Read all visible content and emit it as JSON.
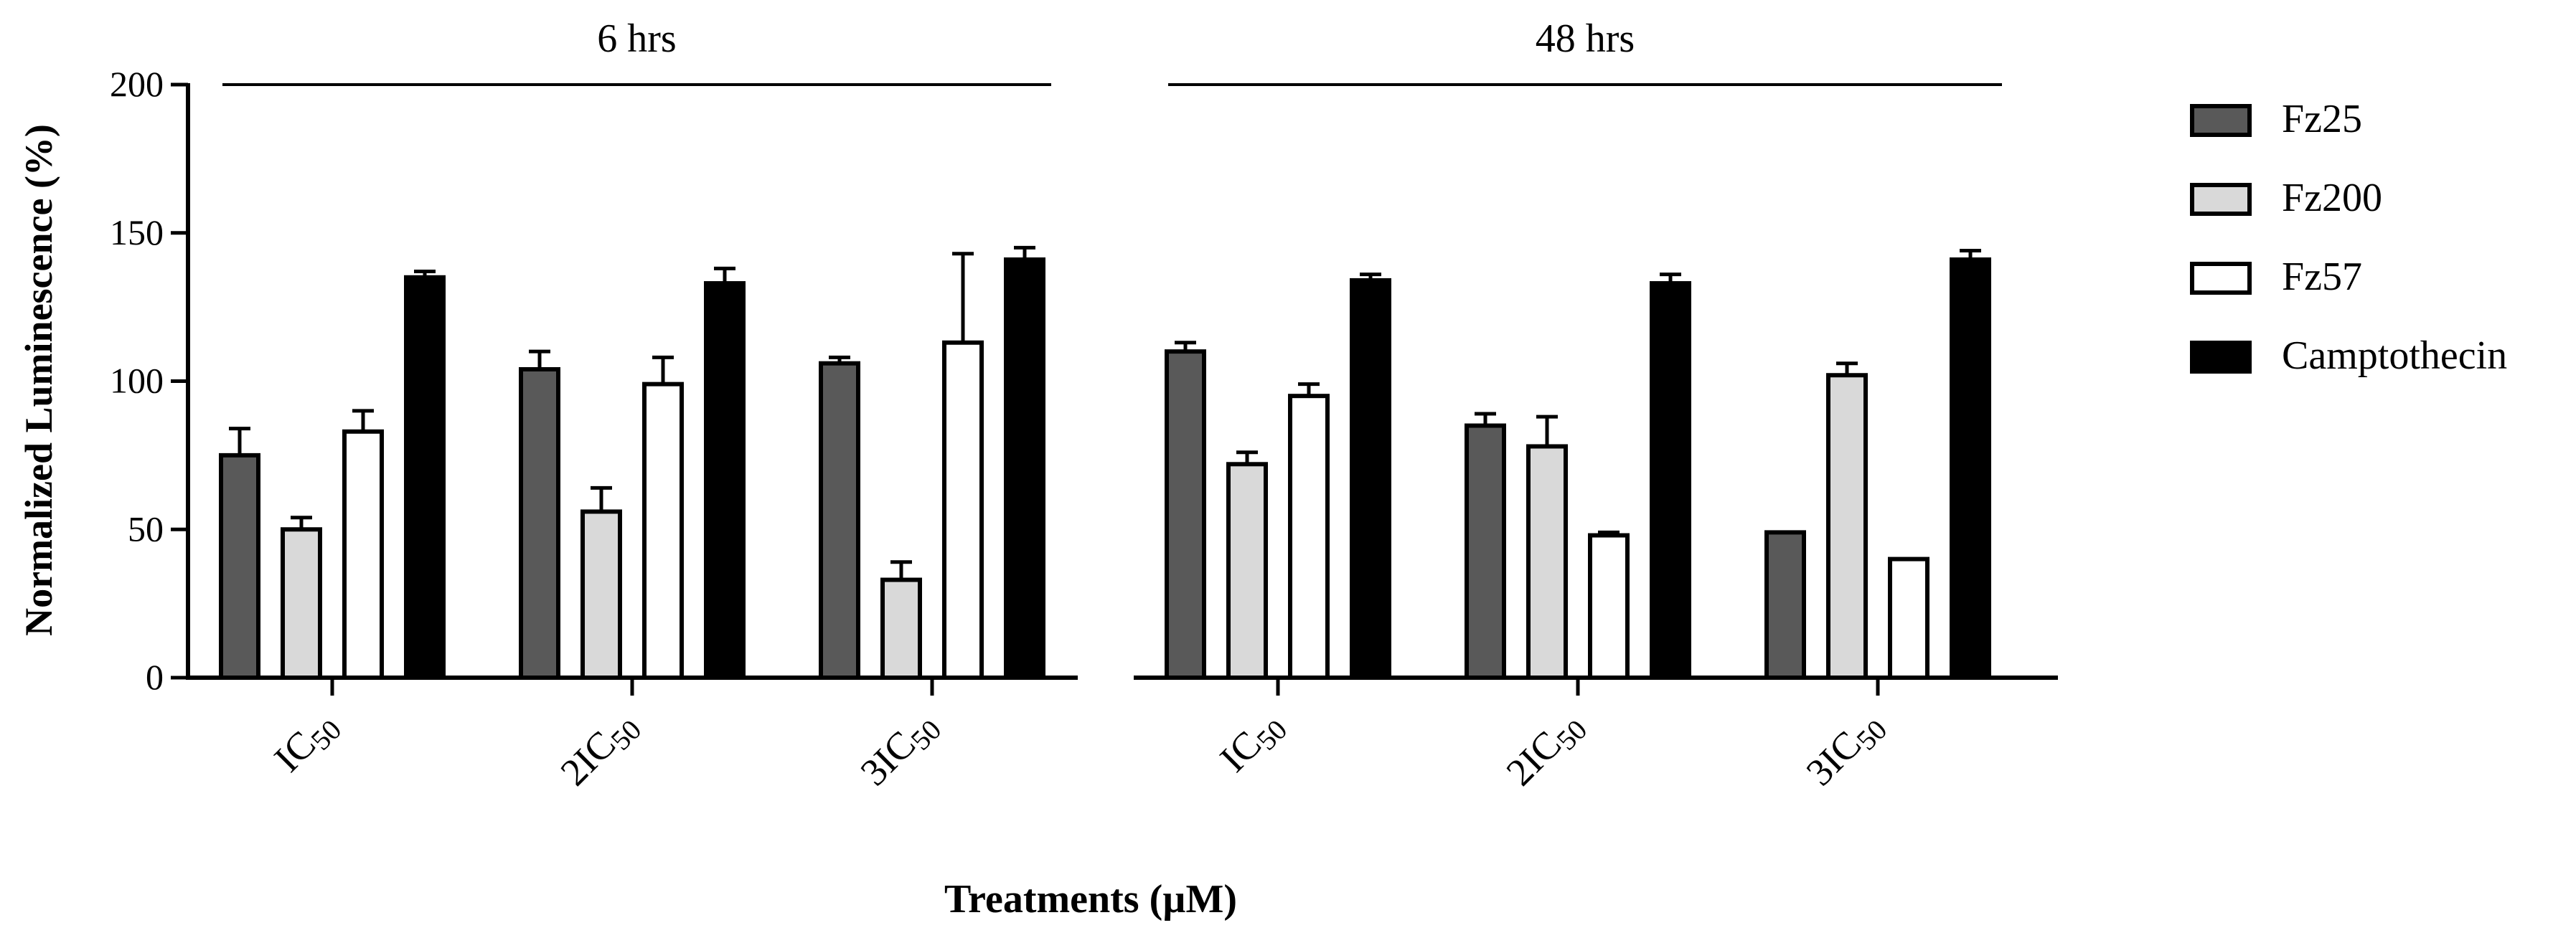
{
  "chart_data": {
    "type": "bar",
    "ylabel": "Normalized Luminescence (%)",
    "xlabel": "Treatments (µM)",
    "ylim": [
      0,
      200
    ],
    "yticks": [
      0,
      50,
      100,
      150,
      200
    ],
    "legend_position": "right",
    "series": [
      {
        "name": "Fz25",
        "color": "#595959"
      },
      {
        "name": "Fz200",
        "color": "#d9d9d9"
      },
      {
        "name": "Fz57",
        "color": "#ffffff"
      },
      {
        "name": "Camptothecin",
        "color": "#000000"
      }
    ],
    "panels": [
      {
        "title": "6 hrs",
        "groups": [
          {
            "base": "IC",
            "sub": "50",
            "values": [
              75,
              50,
              83,
              135
            ],
            "errors": [
              9,
              4,
              7,
              2
            ]
          },
          {
            "base": "2IC",
            "sub": "50",
            "values": [
              104,
              56,
              99,
              133
            ],
            "errors": [
              6,
              8,
              9,
              5
            ]
          },
          {
            "base": "3IC",
            "sub": "50",
            "values": [
              106,
              33,
              113,
              141
            ],
            "errors": [
              2,
              6,
              30,
              4
            ]
          }
        ]
      },
      {
        "title": "48 hrs",
        "groups": [
          {
            "base": "IC",
            "sub": "50",
            "values": [
              110,
              72,
              95,
              134
            ],
            "errors": [
              3,
              4,
              4,
              2
            ]
          },
          {
            "base": "2IC",
            "sub": "50",
            "values": [
              85,
              78,
              48,
              133
            ],
            "errors": [
              4,
              10,
              1,
              3
            ]
          },
          {
            "base": "3IC",
            "sub": "50",
            "values": [
              49,
              102,
              40,
              141
            ],
            "errors": [
              0,
              4,
              0,
              3
            ]
          }
        ]
      }
    ]
  }
}
